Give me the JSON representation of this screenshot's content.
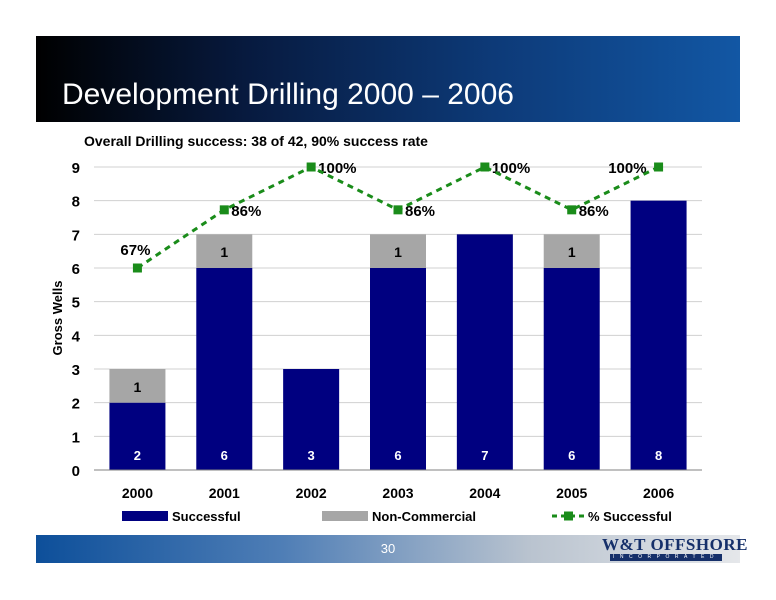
{
  "slide": {
    "title": "Development Drilling 2000 – 2006",
    "subtitle": "Overall Drilling success: 38 of 42, 90% success rate",
    "page_number": "30",
    "logo_main": "W&T OFFSHORE",
    "logo_sub": "INCORPORATED"
  },
  "chart_data": {
    "type": "bar",
    "stacked": true,
    "categories": [
      "2000",
      "2001",
      "2002",
      "2003",
      "2004",
      "2005",
      "2006"
    ],
    "series": [
      {
        "name": "Successful",
        "type": "bar",
        "color": "#000080",
        "values": [
          2,
          6,
          3,
          6,
          7,
          6,
          8
        ],
        "labels": [
          "2",
          "6",
          "3",
          "6",
          "7",
          "6",
          "8"
        ]
      },
      {
        "name": "Non-Commercial",
        "type": "bar",
        "color": "#a6a6a6",
        "values": [
          1,
          1,
          0,
          1,
          0,
          1,
          0
        ],
        "labels": [
          "1",
          "1",
          "",
          "1",
          "",
          "1",
          ""
        ]
      },
      {
        "name": "% Successful",
        "type": "line",
        "color": "#1a8c1a",
        "values": [
          67,
          86,
          100,
          86,
          100,
          86,
          100
        ],
        "labels": [
          "67%",
          "86%",
          "100%",
          "86%",
          "100%",
          "86%",
          "100%"
        ]
      }
    ],
    "ylabel": "Gross Wells",
    "ylim": [
      0,
      9
    ],
    "yticks": [
      "0",
      "1",
      "2",
      "3",
      "4",
      "5",
      "6",
      "7",
      "8",
      "9"
    ],
    "grid": true,
    "legend": "bottom"
  }
}
